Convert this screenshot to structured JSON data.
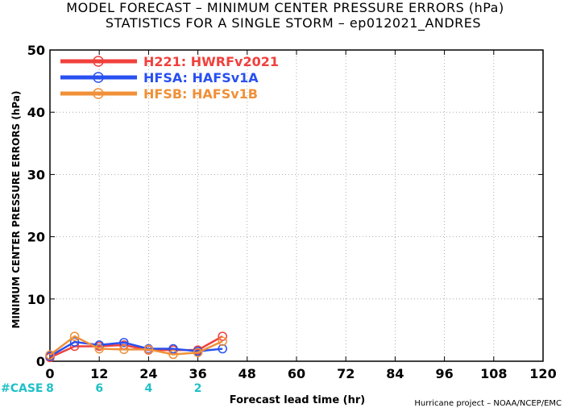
{
  "title_line1": "MODEL FORECAST – MINIMUM CENTER PRESSURE ERRORS (hPa)",
  "title_line2": "STATISTICS FOR A SINGLE STORM – ep012021_ANDRES",
  "credit": "Hurricane project – NOAA/NCEP/EMC",
  "case_label": "#CASE",
  "chart_data": {
    "type": "line",
    "xlabel": "Forecast lead time (hr)",
    "ylabel": "MINIMUM CENTER PRESSURE ERRORS (hPa)",
    "xlim": [
      0,
      120
    ],
    "ylim": [
      0,
      50
    ],
    "xticks": [
      0,
      12,
      24,
      36,
      48,
      60,
      72,
      84,
      96,
      108,
      120
    ],
    "yticks": [
      0,
      10,
      20,
      30,
      40,
      50
    ],
    "grid": true,
    "legend_position": "top-left",
    "x": [
      0,
      6,
      12,
      18,
      24,
      30,
      36,
      42
    ],
    "series": [
      {
        "name": "H221: HWRFv2021",
        "color": "#f0403c",
        "values": [
          0.6,
          2.4,
          2.4,
          2.6,
          1.8,
          1.8,
          1.8,
          4.0
        ]
      },
      {
        "name": "HFSA: HAFSv1A",
        "color": "#2850f0",
        "values": [
          0.8,
          3.1,
          2.6,
          3.0,
          2.0,
          2.0,
          1.6,
          2.0
        ]
      },
      {
        "name": "HFSB: HAFSv1B",
        "color": "#f09038",
        "values": [
          1.0,
          4.0,
          2.0,
          1.9,
          1.9,
          1.1,
          1.4,
          3.2
        ]
      }
    ],
    "cases": [
      {
        "x": 0,
        "label": "8"
      },
      {
        "x": 12,
        "label": "6"
      },
      {
        "x": 24,
        "label": "4"
      },
      {
        "x": 36,
        "label": "2"
      }
    ]
  }
}
